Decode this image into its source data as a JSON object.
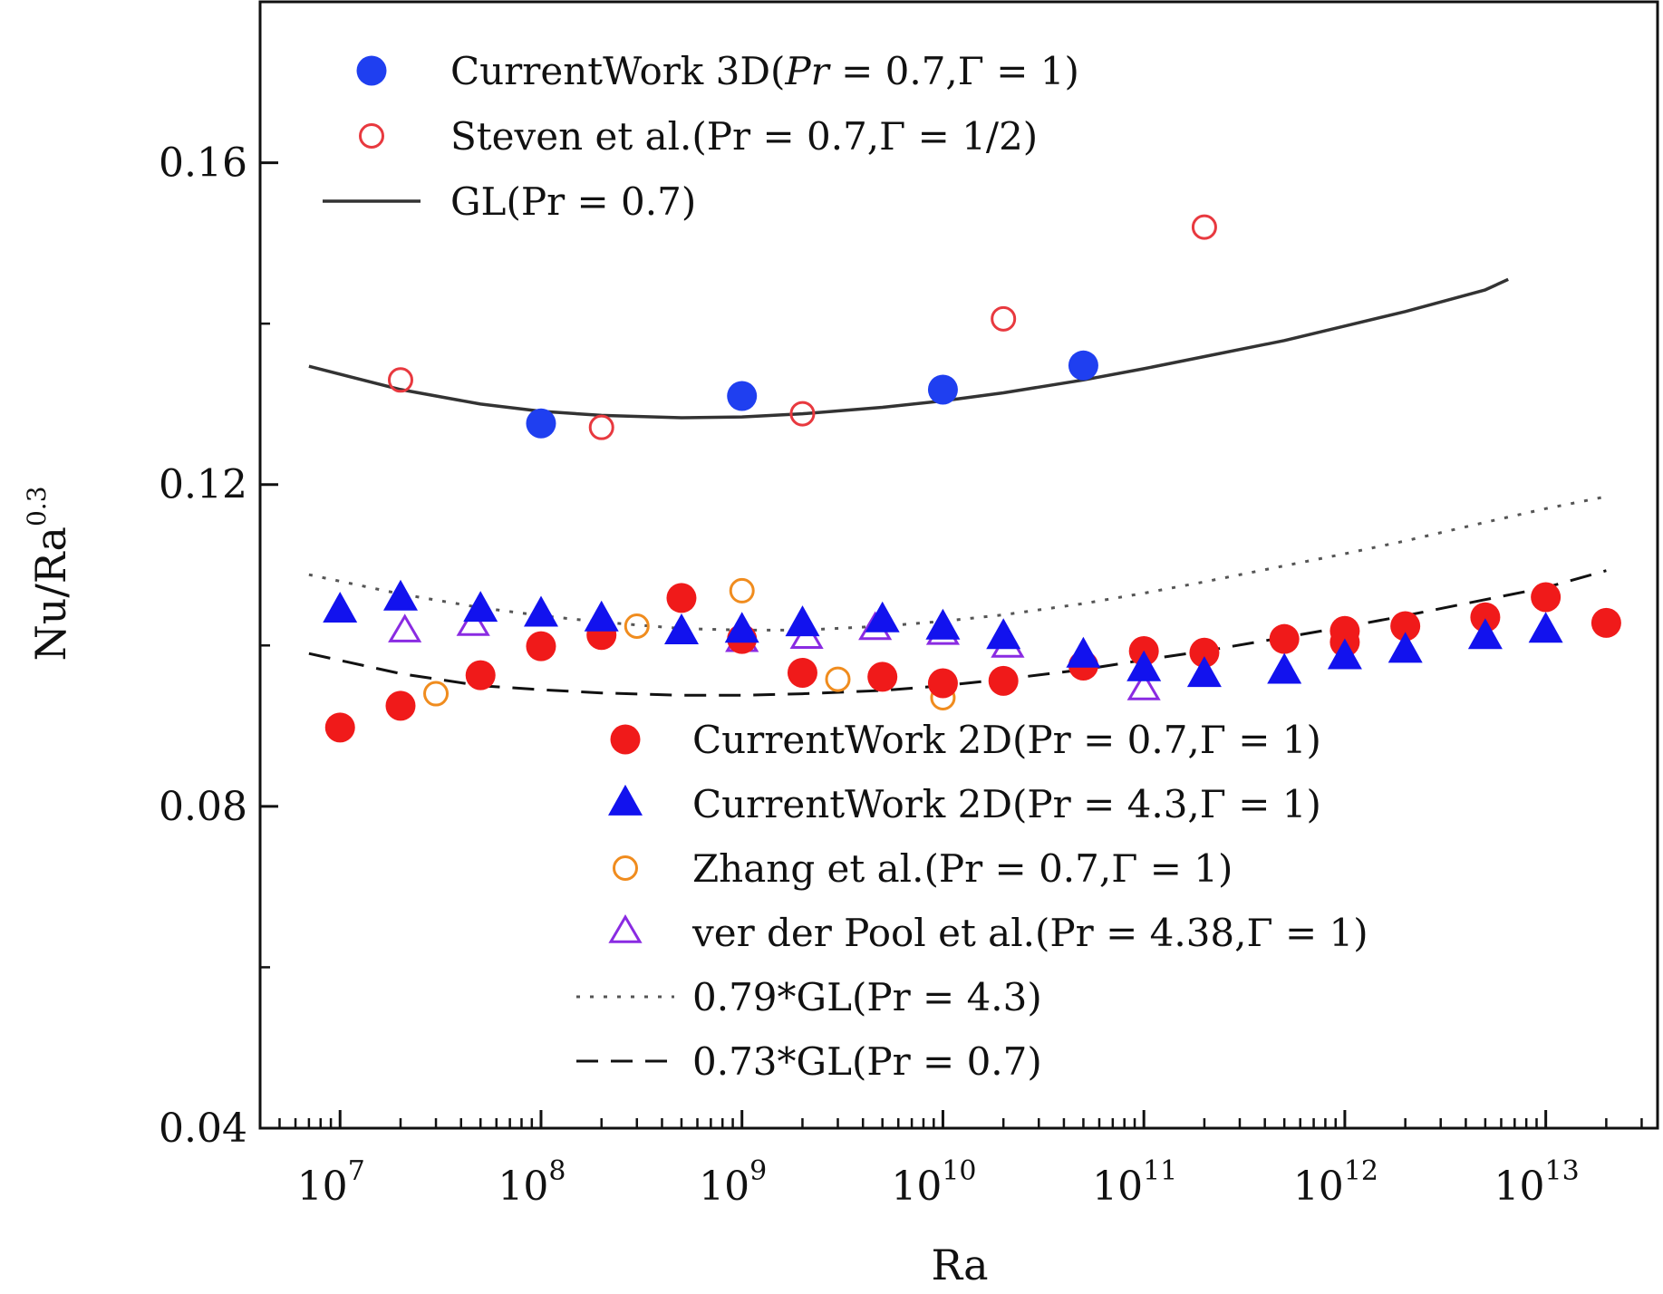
{
  "chart_data": {
    "type": "scatter",
    "title": "",
    "xlabel": "Ra",
    "ylabel": "Nu/Ra",
    "ylabel_sup": "0.3",
    "xscale": "log",
    "xlim": [
      4000000.0,
      36000000000000.0
    ],
    "ylim": [
      0.04,
      0.18
    ],
    "yticks": [
      "0.04",
      "0.08",
      "0.12",
      "0.16"
    ],
    "yticks_values": [
      0.04,
      0.08,
      0.12,
      0.16
    ],
    "xticks": [
      {
        "base": "10",
        "exp": "7",
        "value": 10000000.0
      },
      {
        "base": "10",
        "exp": "8",
        "value": 100000000.0
      },
      {
        "base": "10",
        "exp": "9",
        "value": 1000000000.0
      },
      {
        "base": "10",
        "exp": "10",
        "value": 10000000000.0
      },
      {
        "base": "10",
        "exp": "11",
        "value": 100000000000.0
      },
      {
        "base": "10",
        "exp": "12",
        "value": 1000000000000.0
      },
      {
        "base": "10",
        "exp": "13",
        "value": 10000000000000.0
      }
    ],
    "grid": false,
    "series": [
      {
        "name": "CurrentWork 3D(Pr = 0.7,Γ = 1)",
        "marker": "filled-circle",
        "color": "#1f3ff0",
        "x": [
          100000000.0,
          1000000000.0,
          10000000000.0,
          50000000000.0
        ],
        "y": [
          0.1276,
          0.131,
          0.1318,
          0.1348
        ]
      },
      {
        "name": "Steven et al.(Pr = 0.7,Γ = 1/2)",
        "marker": "open-circle",
        "color": "#e8393f",
        "x": [
          20000000.0,
          200000000.0,
          2000000000.0,
          20000000000.0,
          200000000000.0
        ],
        "y": [
          0.133,
          0.1271,
          0.1288,
          0.1406,
          0.152
        ]
      },
      {
        "name": "CurrentWork 2D(Pr = 0.7,Γ = 1)",
        "marker": "filled-circle",
        "color": "#f01a1a",
        "x": [
          10000000.0,
          20000000.0,
          50000000.0,
          100000000.0,
          200000000.0,
          500000000.0,
          1000000000.0,
          2000000000.0,
          5000000000.0,
          10000000000.0,
          20000000000.0,
          50000000000.0,
          100000000000.0,
          200000000000.0,
          500000000000.0,
          1000000000000.0,
          1000000000000.0,
          2000000000000.0,
          5000000000000.0,
          10000000000000.0,
          20000000000000.0
        ],
        "y": [
          0.0898,
          0.0925,
          0.0963,
          0.0999,
          0.1013,
          0.1059,
          0.1008,
          0.0966,
          0.0961,
          0.0953,
          0.0956,
          0.0975,
          0.0993,
          0.0991,
          0.1008,
          0.1018,
          0.1004,
          0.1024,
          0.1035,
          0.106,
          0.1028
        ]
      },
      {
        "name": "CurrentWork 2D(Pr = 4.3,Γ = 1)",
        "marker": "filled-triangle",
        "color": "#1212ee",
        "x": [
          10000000.0,
          20000000.0,
          50000000.0,
          100000000.0,
          200000000.0,
          500000000.0,
          1000000000.0,
          2000000000.0,
          5000000000.0,
          10000000000.0,
          20000000000.0,
          50000000000.0,
          100000000000.0,
          200000000000.0,
          500000000000.0,
          1000000000000.0,
          2000000000000.0,
          5000000000000.0,
          10000000000000.0
        ],
        "y": [
          0.1043,
          0.1058,
          0.1044,
          0.1038,
          0.1032,
          0.1016,
          0.1018,
          0.1026,
          0.1031,
          0.1022,
          0.101,
          0.0987,
          0.097,
          0.0963,
          0.0967,
          0.0985,
          0.0993,
          0.101,
          0.1018
        ]
      },
      {
        "name": "Zhang et al.(Pr = 0.7,Γ = 1)",
        "marker": "open-circle",
        "color": "#f08c1e",
        "x": [
          30000000.0,
          300000000.0,
          1000000000.0,
          3000000000.0,
          10000000000.0
        ],
        "y": [
          0.094,
          0.1024,
          0.1068,
          0.0958,
          0.0935
        ]
      },
      {
        "name": "ver der Pool et al.(Pr = 4.38,Γ = 1)",
        "marker": "open-triangle",
        "color": "#8a2be2",
        "x": [
          21000000.0,
          46000000.0,
          1000000000.0,
          2100000000.0,
          4600000000.0,
          10000000000.0,
          21000000000.0,
          100000000000.0
        ],
        "y": [
          0.1017,
          0.1025,
          0.1005,
          0.1009,
          0.102,
          0.1014,
          0.0998,
          0.0945
        ]
      }
    ],
    "lines": [
      {
        "name": "GL(Pr = 0.7)",
        "style": "solid",
        "color": "#333333",
        "x": [
          7000000.0,
          20000000.0,
          50000000.0,
          100000000.0,
          200000000.0,
          500000000.0,
          1000000000.0,
          2000000000.0,
          5000000000.0,
          10000000000.0,
          20000000000.0,
          50000000000.0,
          100000000000.0,
          200000000000.0,
          500000000000.0,
          1000000000000.0,
          2000000000000.0,
          5000000000000.0,
          6500000000000.0
        ],
        "y": [
          0.1347,
          0.1318,
          0.13,
          0.1291,
          0.1286,
          0.1283,
          0.1284,
          0.1288,
          0.1296,
          0.1304,
          0.1314,
          0.133,
          0.1344,
          0.1359,
          0.1379,
          0.1397,
          0.1415,
          0.1442,
          0.1455
        ]
      },
      {
        "name": "0.79*GL(Pr = 4.3)",
        "style": "dotted",
        "color": "#555555",
        "x": [
          7000000.0,
          20000000.0,
          50000000.0,
          100000000.0,
          200000000.0,
          500000000.0,
          1000000000.0,
          2000000000.0,
          5000000000.0,
          10000000000.0,
          20000000000.0,
          50000000000.0,
          100000000000.0,
          200000000000.0,
          500000000000.0,
          1000000000000.0,
          2000000000000.0,
          5000000000000.0,
          10000000000000.0,
          20000000000000.0
        ],
        "y": [
          0.1088,
          0.1064,
          0.1047,
          0.1037,
          0.1029,
          0.1021,
          0.1019,
          0.1019,
          0.1024,
          0.103,
          0.1038,
          0.1052,
          0.1065,
          0.1079,
          0.1099,
          0.1114,
          0.113,
          0.1153,
          0.117,
          0.1185
        ]
      },
      {
        "name": "0.73*GL(Pr = 0.7)",
        "style": "dashed",
        "color": "#111111",
        "x": [
          7000000.0,
          20000000.0,
          50000000.0,
          100000000.0,
          200000000.0,
          500000000.0,
          1000000000.0,
          2000000000.0,
          5000000000.0,
          10000000000.0,
          20000000000.0,
          50000000000.0,
          100000000000.0,
          200000000000.0,
          500000000000.0,
          1000000000000.0,
          2000000000000.0,
          5000000000000.0,
          10000000000000.0,
          20000000000000.0
        ],
        "y": [
          0.099,
          0.0965,
          0.095,
          0.0945,
          0.0941,
          0.0938,
          0.0938,
          0.094,
          0.0944,
          0.095,
          0.0958,
          0.097,
          0.0982,
          0.0993,
          0.101,
          0.1023,
          0.1037,
          0.1057,
          0.1072,
          0.1093
        ]
      }
    ],
    "legends": [
      {
        "placement": "top-left",
        "entries": [
          {
            "ref": "series",
            "index": 0,
            "parts": [
              {
                "t": "CurrentWork 3D("
              },
              {
                "t": "Pr",
                "i": true
              },
              {
                "t": " = 0.7,Γ = 1)"
              }
            ]
          },
          {
            "ref": "series",
            "index": 1,
            "parts": [
              {
                "t": "Steven et al.(Pr = 0.7,Γ = 1/2)"
              }
            ]
          },
          {
            "ref": "lines",
            "index": 0,
            "parts": [
              {
                "t": "GL(Pr = 0.7)"
              }
            ]
          }
        ]
      },
      {
        "placement": "lower-middle",
        "entries": [
          {
            "ref": "series",
            "index": 2,
            "parts": [
              {
                "t": "CurrentWork 2D(Pr = 0.7,Γ = 1)"
              }
            ]
          },
          {
            "ref": "series",
            "index": 3,
            "parts": [
              {
                "t": "CurrentWork 2D(Pr = 4.3,Γ = 1)"
              }
            ]
          },
          {
            "ref": "series",
            "index": 4,
            "parts": [
              {
                "t": "Zhang et al.(Pr = 0.7,Γ = 1)"
              }
            ]
          },
          {
            "ref": "series",
            "index": 5,
            "parts": [
              {
                "t": "ver der Pool et al.(Pr = 4.38,Γ = 1)"
              }
            ]
          },
          {
            "ref": "lines",
            "index": 1,
            "parts": [
              {
                "t": "0.79*GL(Pr = 4.3)"
              }
            ]
          },
          {
            "ref": "lines",
            "index": 2,
            "parts": [
              {
                "t": "0.73*GL(Pr = 0.7)"
              }
            ]
          }
        ]
      }
    ]
  }
}
